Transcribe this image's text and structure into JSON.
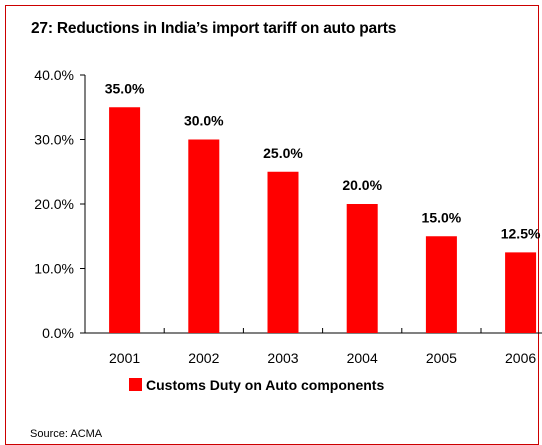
{
  "title": "27: Reductions in India’s import tariff on auto parts",
  "source": "Source: ACMA",
  "colors": {
    "bar": "#ff0000",
    "frame": "#cc0000",
    "axis": "#000000"
  },
  "chart_data": {
    "type": "bar",
    "categories": [
      "2001",
      "2002",
      "2003",
      "2004",
      "2005",
      "2006"
    ],
    "series": [
      {
        "name": "Customs Duty on Auto components",
        "values": [
          35.0,
          30.0,
          25.0,
          20.0,
          15.0,
          12.5
        ]
      }
    ],
    "data_labels": [
      "35.0%",
      "30.0%",
      "25.0%",
      "20.0%",
      "15.0%",
      "12.5%"
    ],
    "y_ticks": [
      "0.0%",
      "10.0%",
      "20.0%",
      "30.0%",
      "40.0%"
    ],
    "y_tick_values": [
      0,
      10,
      20,
      30,
      40
    ],
    "ylim": [
      0,
      40
    ],
    "grid": false,
    "legend_position": "bottom"
  }
}
